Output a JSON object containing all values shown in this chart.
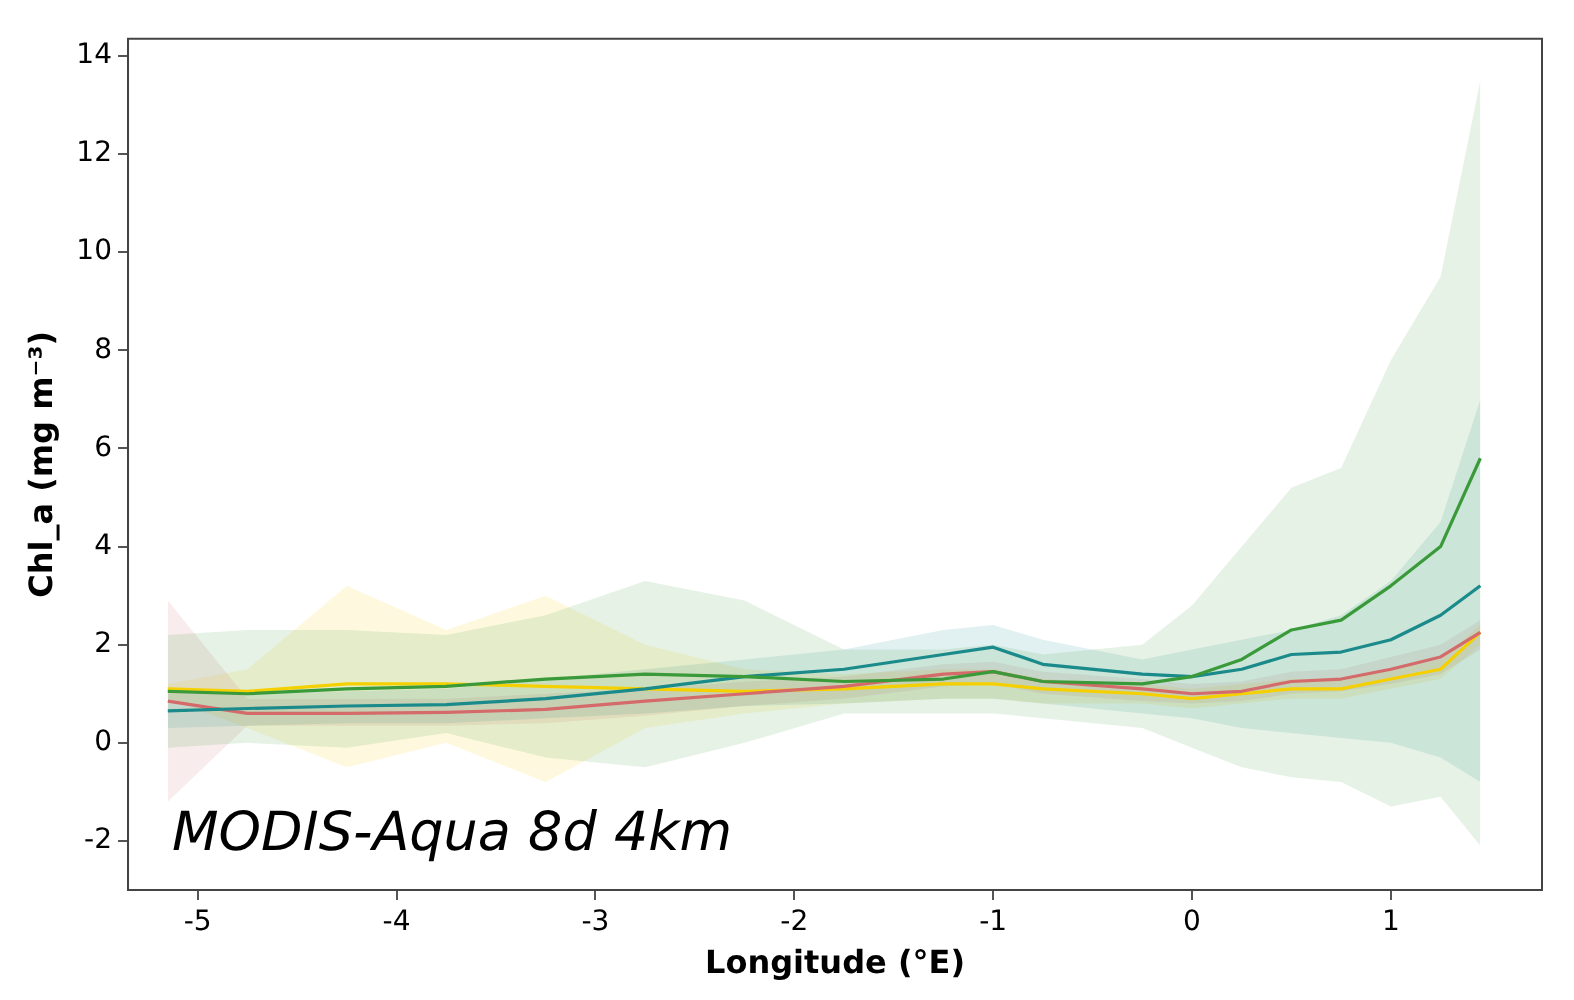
{
  "chart_data": {
    "type": "line",
    "xlabel": "Longitude (°E)",
    "ylabel": "Chl_a (mg m⁻³)",
    "x": [
      -5.15,
      -4.75,
      -4.25,
      -3.75,
      -3.25,
      -2.75,
      -2.25,
      -1.75,
      -1.25,
      -1,
      -0.75,
      -0.25,
      0,
      0.25,
      0.5,
      0.75,
      1,
      1.25,
      1.45
    ],
    "series": [
      {
        "color": "#3a9a3a",
        "values": [
          1.05,
          1.0,
          1.1,
          1.15,
          1.3,
          1.4,
          1.35,
          1.25,
          1.3,
          1.45,
          1.25,
          1.2,
          1.35,
          1.7,
          2.3,
          2.5,
          3.2,
          4.0,
          5.8
        ],
        "upper": [
          2.2,
          2.3,
          2.3,
          2.2,
          2.6,
          3.3,
          2.9,
          1.9,
          1.9,
          2.0,
          1.8,
          2.0,
          2.8,
          4.0,
          5.2,
          5.6,
          7.8,
          9.5,
          13.5
        ],
        "lower": [
          -0.1,
          0.0,
          -0.1,
          0.2,
          -0.3,
          -0.5,
          0.0,
          0.6,
          0.6,
          0.6,
          0.5,
          0.3,
          -0.1,
          -0.5,
          -0.7,
          -0.8,
          -1.3,
          -1.1,
          -2.1
        ]
      },
      {
        "color": "#1a8a8a",
        "values": [
          0.65,
          0.7,
          0.75,
          0.78,
          0.9,
          1.1,
          1.35,
          1.5,
          1.8,
          1.95,
          1.6,
          1.4,
          1.35,
          1.5,
          1.8,
          1.85,
          2.1,
          2.6,
          3.2
        ],
        "upper": [
          1.0,
          1.0,
          1.05,
          1.1,
          1.3,
          1.5,
          1.7,
          1.9,
          2.3,
          2.4,
          2.1,
          1.7,
          1.9,
          2.1,
          2.3,
          2.6,
          3.3,
          4.5,
          7.0
        ],
        "lower": [
          0.3,
          0.35,
          0.4,
          0.4,
          0.5,
          0.6,
          0.75,
          0.8,
          0.9,
          0.9,
          0.8,
          0.6,
          0.5,
          0.3,
          0.2,
          0.1,
          0.0,
          -0.3,
          -0.8
        ]
      },
      {
        "color": "#d46a6a",
        "values": [
          0.85,
          0.6,
          0.6,
          0.62,
          0.68,
          0.85,
          1.0,
          1.15,
          1.4,
          1.45,
          1.25,
          1.1,
          1.0,
          1.05,
          1.25,
          1.3,
          1.5,
          1.75,
          2.25
        ],
        "upper": [
          2.9,
          0.9,
          0.9,
          0.9,
          1.0,
          1.1,
          1.25,
          1.35,
          1.6,
          1.65,
          1.45,
          1.3,
          1.2,
          1.25,
          1.45,
          1.5,
          1.75,
          2.0,
          2.5
        ],
        "lower": [
          -1.2,
          0.35,
          0.35,
          0.35,
          0.4,
          0.55,
          0.75,
          0.9,
          1.15,
          1.2,
          1.0,
          0.85,
          0.8,
          0.85,
          1.0,
          1.05,
          1.2,
          1.4,
          1.9
        ]
      },
      {
        "color": "#f5d000",
        "values": [
          1.1,
          1.05,
          1.2,
          1.2,
          1.15,
          1.1,
          1.05,
          1.1,
          1.2,
          1.2,
          1.1,
          1.0,
          0.9,
          1.0,
          1.1,
          1.1,
          1.3,
          1.5,
          2.25
        ],
        "upper": [
          1.2,
          1.5,
          3.2,
          2.3,
          3.0,
          2.0,
          1.5,
          1.4,
          1.5,
          1.5,
          1.3,
          1.2,
          1.1,
          1.2,
          1.3,
          1.3,
          1.5,
          1.7,
          2.4
        ],
        "lower": [
          0.9,
          0.3,
          -0.5,
          0.0,
          -0.8,
          0.3,
          0.6,
          0.8,
          0.9,
          0.9,
          0.8,
          0.8,
          0.7,
          0.8,
          0.9,
          0.9,
          1.1,
          1.3,
          2.0
        ]
      }
    ],
    "xlim": [
      -5.35,
      1.76
    ],
    "xticks": [
      -5,
      -4,
      -3,
      -2,
      -1,
      0,
      1
    ],
    "ylim": [
      -3,
      14.35
    ],
    "yticks": [
      -2,
      0,
      2,
      4,
      6,
      8,
      10,
      12,
      14
    ],
    "annotations": [
      "MODIS-Aqua 8d 4km"
    ],
    "grid": false,
    "legend": false,
    "marker": "none",
    "line_style": "solid"
  }
}
